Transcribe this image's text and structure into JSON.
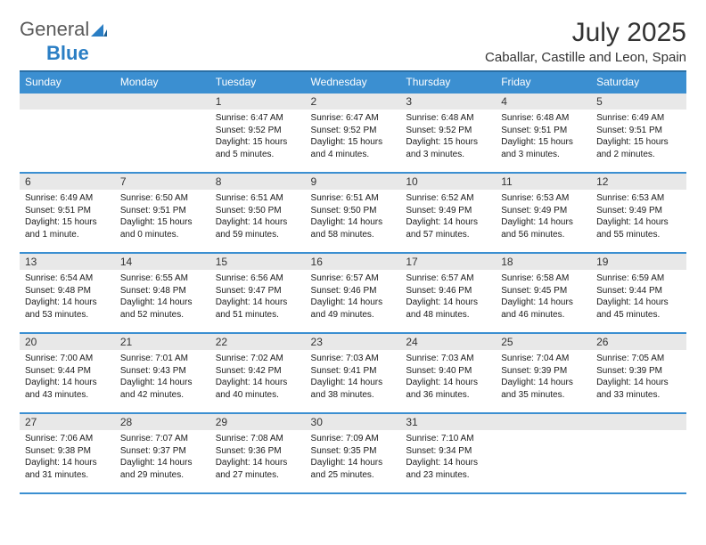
{
  "logo": {
    "text1": "General",
    "text2": "Blue"
  },
  "title": "July 2025",
  "location": "Caballar, Castille and Leon, Spain",
  "colors": {
    "header_bg": "#3b8fd1",
    "header_border": "#2a6fa5",
    "row_divider": "#3b8fd1",
    "daynum_bg": "#e8e8e8",
    "text": "#1a1a1a",
    "logo_gray": "#5a5a5a",
    "logo_blue": "#2a7ec4"
  },
  "day_headers": [
    "Sunday",
    "Monday",
    "Tuesday",
    "Wednesday",
    "Thursday",
    "Friday",
    "Saturday"
  ],
  "weeks": [
    [
      null,
      null,
      {
        "n": 1,
        "sr": "6:47 AM",
        "ss": "9:52 PM",
        "dl": "15 hours and 5 minutes."
      },
      {
        "n": 2,
        "sr": "6:47 AM",
        "ss": "9:52 PM",
        "dl": "15 hours and 4 minutes."
      },
      {
        "n": 3,
        "sr": "6:48 AM",
        "ss": "9:52 PM",
        "dl": "15 hours and 3 minutes."
      },
      {
        "n": 4,
        "sr": "6:48 AM",
        "ss": "9:51 PM",
        "dl": "15 hours and 3 minutes."
      },
      {
        "n": 5,
        "sr": "6:49 AM",
        "ss": "9:51 PM",
        "dl": "15 hours and 2 minutes."
      }
    ],
    [
      {
        "n": 6,
        "sr": "6:49 AM",
        "ss": "9:51 PM",
        "dl": "15 hours and 1 minute."
      },
      {
        "n": 7,
        "sr": "6:50 AM",
        "ss": "9:51 PM",
        "dl": "15 hours and 0 minutes."
      },
      {
        "n": 8,
        "sr": "6:51 AM",
        "ss": "9:50 PM",
        "dl": "14 hours and 59 minutes."
      },
      {
        "n": 9,
        "sr": "6:51 AM",
        "ss": "9:50 PM",
        "dl": "14 hours and 58 minutes."
      },
      {
        "n": 10,
        "sr": "6:52 AM",
        "ss": "9:49 PM",
        "dl": "14 hours and 57 minutes."
      },
      {
        "n": 11,
        "sr": "6:53 AM",
        "ss": "9:49 PM",
        "dl": "14 hours and 56 minutes."
      },
      {
        "n": 12,
        "sr": "6:53 AM",
        "ss": "9:49 PM",
        "dl": "14 hours and 55 minutes."
      }
    ],
    [
      {
        "n": 13,
        "sr": "6:54 AM",
        "ss": "9:48 PM",
        "dl": "14 hours and 53 minutes."
      },
      {
        "n": 14,
        "sr": "6:55 AM",
        "ss": "9:48 PM",
        "dl": "14 hours and 52 minutes."
      },
      {
        "n": 15,
        "sr": "6:56 AM",
        "ss": "9:47 PM",
        "dl": "14 hours and 51 minutes."
      },
      {
        "n": 16,
        "sr": "6:57 AM",
        "ss": "9:46 PM",
        "dl": "14 hours and 49 minutes."
      },
      {
        "n": 17,
        "sr": "6:57 AM",
        "ss": "9:46 PM",
        "dl": "14 hours and 48 minutes."
      },
      {
        "n": 18,
        "sr": "6:58 AM",
        "ss": "9:45 PM",
        "dl": "14 hours and 46 minutes."
      },
      {
        "n": 19,
        "sr": "6:59 AM",
        "ss": "9:44 PM",
        "dl": "14 hours and 45 minutes."
      }
    ],
    [
      {
        "n": 20,
        "sr": "7:00 AM",
        "ss": "9:44 PM",
        "dl": "14 hours and 43 minutes."
      },
      {
        "n": 21,
        "sr": "7:01 AM",
        "ss": "9:43 PM",
        "dl": "14 hours and 42 minutes."
      },
      {
        "n": 22,
        "sr": "7:02 AM",
        "ss": "9:42 PM",
        "dl": "14 hours and 40 minutes."
      },
      {
        "n": 23,
        "sr": "7:03 AM",
        "ss": "9:41 PM",
        "dl": "14 hours and 38 minutes."
      },
      {
        "n": 24,
        "sr": "7:03 AM",
        "ss": "9:40 PM",
        "dl": "14 hours and 36 minutes."
      },
      {
        "n": 25,
        "sr": "7:04 AM",
        "ss": "9:39 PM",
        "dl": "14 hours and 35 minutes."
      },
      {
        "n": 26,
        "sr": "7:05 AM",
        "ss": "9:39 PM",
        "dl": "14 hours and 33 minutes."
      }
    ],
    [
      {
        "n": 27,
        "sr": "7:06 AM",
        "ss": "9:38 PM",
        "dl": "14 hours and 31 minutes."
      },
      {
        "n": 28,
        "sr": "7:07 AM",
        "ss": "9:37 PM",
        "dl": "14 hours and 29 minutes."
      },
      {
        "n": 29,
        "sr": "7:08 AM",
        "ss": "9:36 PM",
        "dl": "14 hours and 27 minutes."
      },
      {
        "n": 30,
        "sr": "7:09 AM",
        "ss": "9:35 PM",
        "dl": "14 hours and 25 minutes."
      },
      {
        "n": 31,
        "sr": "7:10 AM",
        "ss": "9:34 PM",
        "dl": "14 hours and 23 minutes."
      },
      null,
      null
    ]
  ],
  "labels": {
    "sunrise": "Sunrise:",
    "sunset": "Sunset:",
    "daylight": "Daylight:"
  }
}
